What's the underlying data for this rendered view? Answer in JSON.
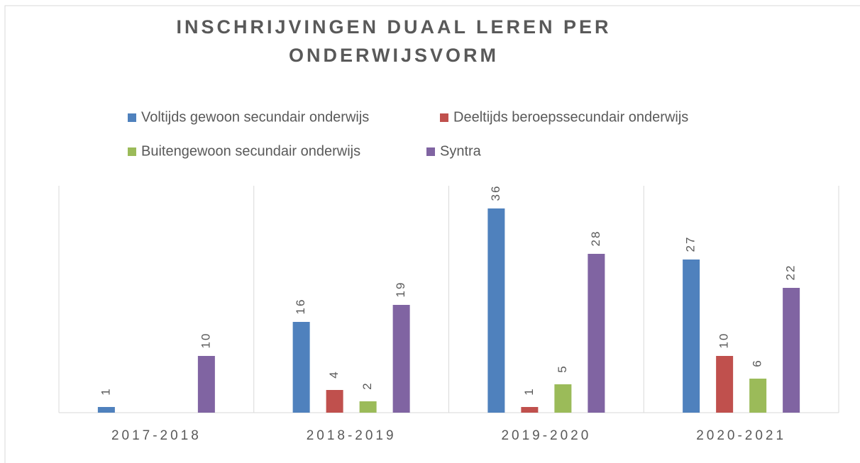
{
  "chart_data": {
    "type": "bar",
    "title": "INSCHRIJVINGEN DUAAL LEREN PER ONDERWIJSVORM",
    "categories": [
      "2017-2018",
      "2018-2019",
      "2019-2020",
      "2020-2021"
    ],
    "series": [
      {
        "name": "Voltijds gewoon secundair onderwijs",
        "color": "#4f81bd",
        "values": [
          1,
          16,
          36,
          27
        ]
      },
      {
        "name": "Deeltijds beroepssecundair onderwijs",
        "color": "#c0504d",
        "values": [
          null,
          4,
          1,
          10
        ]
      },
      {
        "name": "Buitengewoon secundair onderwijs",
        "color": "#9bbb59",
        "values": [
          null,
          2,
          5,
          6
        ]
      },
      {
        "name": "Syntra",
        "color": "#8064a2",
        "values": [
          10,
          19,
          28,
          22
        ]
      }
    ],
    "legend": "top",
    "data_labels": true
  }
}
